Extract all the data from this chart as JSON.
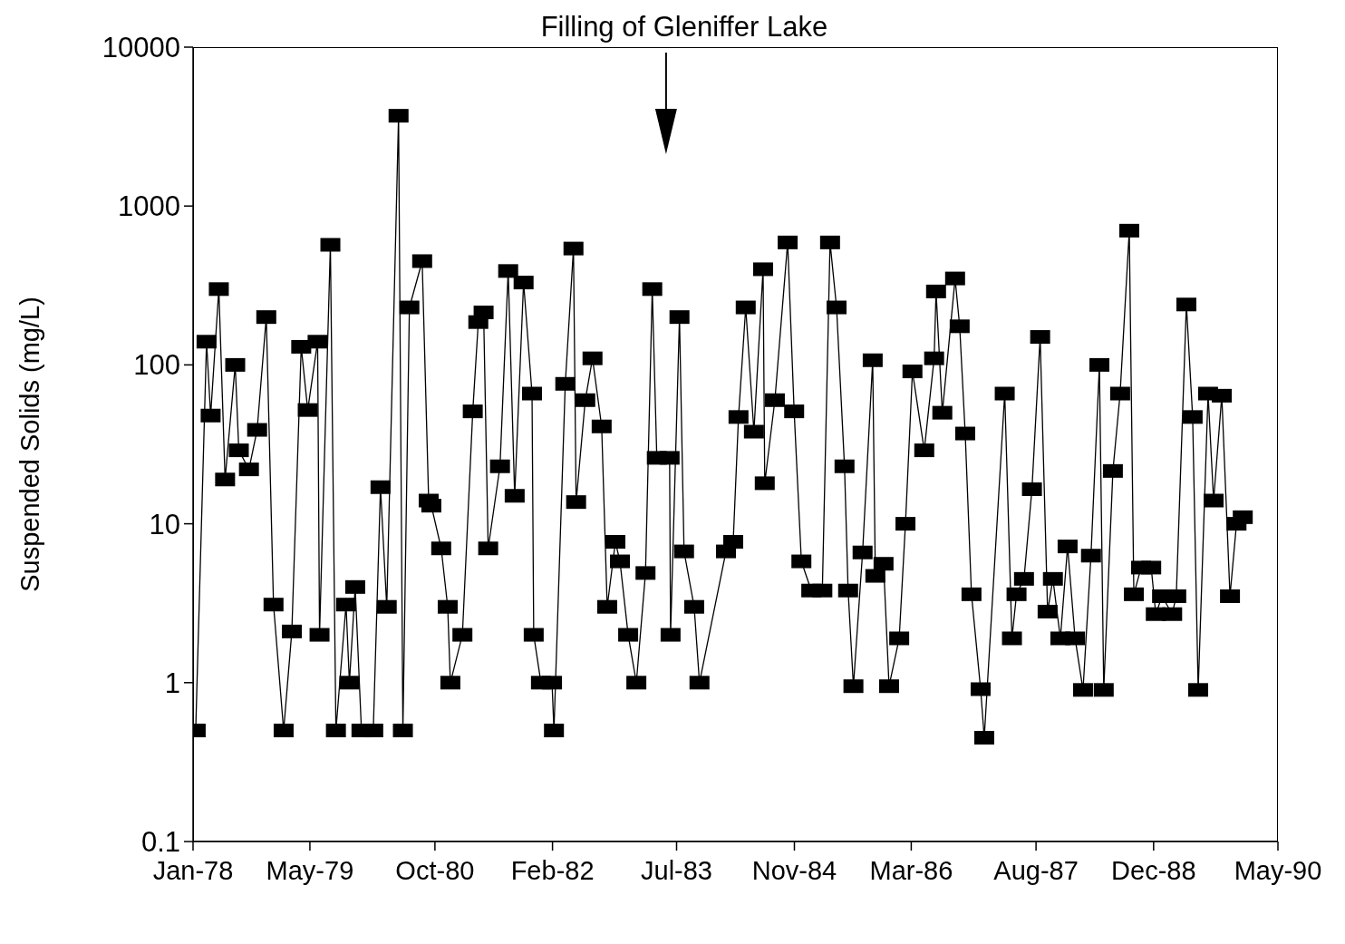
{
  "chart_data": {
    "type": "line",
    "ylabel": "Suspended Solids (mg/L)",
    "log": "y",
    "marker": "square",
    "line_style": "solid",
    "color": "#000000",
    "annotations": [
      "Filling of Gleniffer Lake"
    ],
    "xlim": [
      "1978-01-01",
      "1990-05-01"
    ],
    "xticks": [
      {
        "value": "1978-01-01",
        "label": "Jan-78"
      },
      {
        "value": "1979-05-01",
        "label": "May-79"
      },
      {
        "value": "1980-10-01",
        "label": "Oct-80"
      },
      {
        "value": "1982-02-01",
        "label": "Feb-82"
      },
      {
        "value": "1983-07-01",
        "label": "Jul-83"
      },
      {
        "value": "1984-11-01",
        "label": "Nov-84"
      },
      {
        "value": "1986-03-01",
        "label": "Mar-86"
      },
      {
        "value": "1987-08-01",
        "label": "Aug-87"
      },
      {
        "value": "1988-12-01",
        "label": "Dec-88"
      },
      {
        "value": "1990-05-01",
        "label": "May-90"
      }
    ],
    "ylim": [
      0.1,
      10000
    ],
    "yticks": [
      0.1,
      1,
      10,
      100,
      1000,
      10000
    ],
    "x": [
      "1978-01-12",
      "1978-02-26",
      "1978-03-15",
      "1978-04-18",
      "1978-05-14",
      "1978-06-25",
      "1978-07-10",
      "1978-08-21",
      "1978-09-24",
      "1978-11-01",
      "1978-12-01",
      "1979-01-12",
      "1979-02-15",
      "1979-03-26",
      "1979-04-22",
      "1979-06-02",
      "1979-06-10",
      "1979-07-25",
      "1979-08-17",
      "1979-09-28",
      "1979-10-12",
      "1979-11-05",
      "1979-12-01",
      "1980-01-19",
      "1980-02-18",
      "1980-03-15",
      "1980-05-03",
      "1980-05-21",
      "1980-06-17",
      "1980-08-09",
      "1980-09-05",
      "1980-09-16",
      "1980-10-27",
      "1980-11-23",
      "1980-12-04",
      "1981-01-23",
      "1981-03-07",
      "1981-03-30",
      "1981-04-21",
      "1981-05-10",
      "1981-06-28",
      "1981-08-01",
      "1981-08-28",
      "1981-10-04",
      "1981-11-08",
      "1981-11-15",
      "1981-12-15",
      "1982-01-30",
      "1982-02-07",
      "1982-03-26",
      "1982-04-29",
      "1982-05-10",
      "1982-06-17",
      "1982-07-17",
      "1982-08-24",
      "1982-09-16",
      "1982-10-20",
      "1982-11-08",
      "1982-12-12",
      "1983-01-15",
      "1983-02-22",
      "1983-03-22",
      "1983-04-10",
      "1983-06-02",
      "1983-06-06",
      "1983-07-13",
      "1983-08-01",
      "1983-09-12",
      "1983-10-04",
      "1984-01-22",
      "1984-02-21",
      "1984-03-14",
      "1984-04-13",
      "1984-05-17",
      "1984-06-24",
      "1984-07-01",
      "1984-08-12",
      "1984-10-04",
      "1984-10-31",
      "1984-11-30",
      "1985-01-10",
      "1985-02-25",
      "1985-03-29",
      "1985-04-25",
      "1985-05-28",
      "1985-06-12",
      "1985-07-04",
      "1985-08-11",
      "1985-09-22",
      "1985-10-03",
      "1985-11-06",
      "1985-11-29",
      "1986-01-10",
      "1986-02-05",
      "1986-03-06",
      "1986-04-24",
      "1986-06-04",
      "1986-06-12",
      "1986-07-08",
      "1986-08-30",
      "1986-09-18",
      "1986-10-11",
      "1986-11-06",
      "1986-12-14",
      "1986-12-29",
      "1987-03-24",
      "1987-04-23",
      "1987-05-12",
      "1987-06-12",
      "1987-07-15",
      "1987-08-18",
      "1987-09-18",
      "1987-10-10",
      "1987-11-10",
      "1987-12-10",
      "1988-01-10",
      "1988-02-12",
      "1988-03-16",
      "1988-04-20",
      "1988-05-08",
      "1988-06-15",
      "1988-07-15",
      "1988-08-22",
      "1988-09-10",
      "1988-10-10",
      "1988-11-21",
      "1988-12-10",
      "1989-01-05",
      "1989-02-16",
      "1989-03-05",
      "1989-04-16",
      "1989-05-12",
      "1989-06-04",
      "1989-07-15",
      "1989-08-07",
      "1989-09-10",
      "1989-10-14",
      "1989-11-10",
      "1989-12-06"
    ],
    "values": [
      0.5,
      140,
      48,
      300,
      19,
      100,
      29,
      22,
      39,
      200,
      3.1,
      0.5,
      2.1,
      130,
      52,
      140,
      2,
      570,
      0.5,
      3.1,
      1,
      4,
      0.5,
      0.5,
      17,
      3,
      3700,
      0.5,
      230,
      450,
      14,
      13,
      7,
      3,
      1,
      2,
      51,
      186,
      214,
      7,
      23,
      390,
      15,
      330,
      66,
      2,
      1,
      1,
      0.5,
      76,
      540,
      13.7,
      60,
      110,
      41,
      3,
      7.7,
      5.8,
      2,
      1,
      4.9,
      300,
      26,
      26,
      2,
      200,
      6.7,
      3,
      1,
      6.7,
      7.7,
      47,
      230,
      38,
      400,
      18,
      60,
      590,
      51,
      5.8,
      3.8,
      3.8,
      590,
      230,
      23,
      3.8,
      0.95,
      6.6,
      107,
      4.7,
      5.6,
      0.95,
      1.9,
      10,
      91,
      29,
      110,
      290,
      50,
      350,
      175,
      37,
      3.6,
      0.91,
      0.45,
      66,
      1.9,
      3.6,
      4.5,
      16.5,
      150,
      2.8,
      4.5,
      1.9,
      7.2,
      1.9,
      0.9,
      6.3,
      100,
      0.9,
      21.5,
      66,
      700,
      3.6,
      5.3,
      5.3,
      2.7,
      3.5,
      2.7,
      3.5,
      240,
      47,
      0.9,
      66,
      14,
      64,
      3.5,
      10,
      11
    ]
  }
}
